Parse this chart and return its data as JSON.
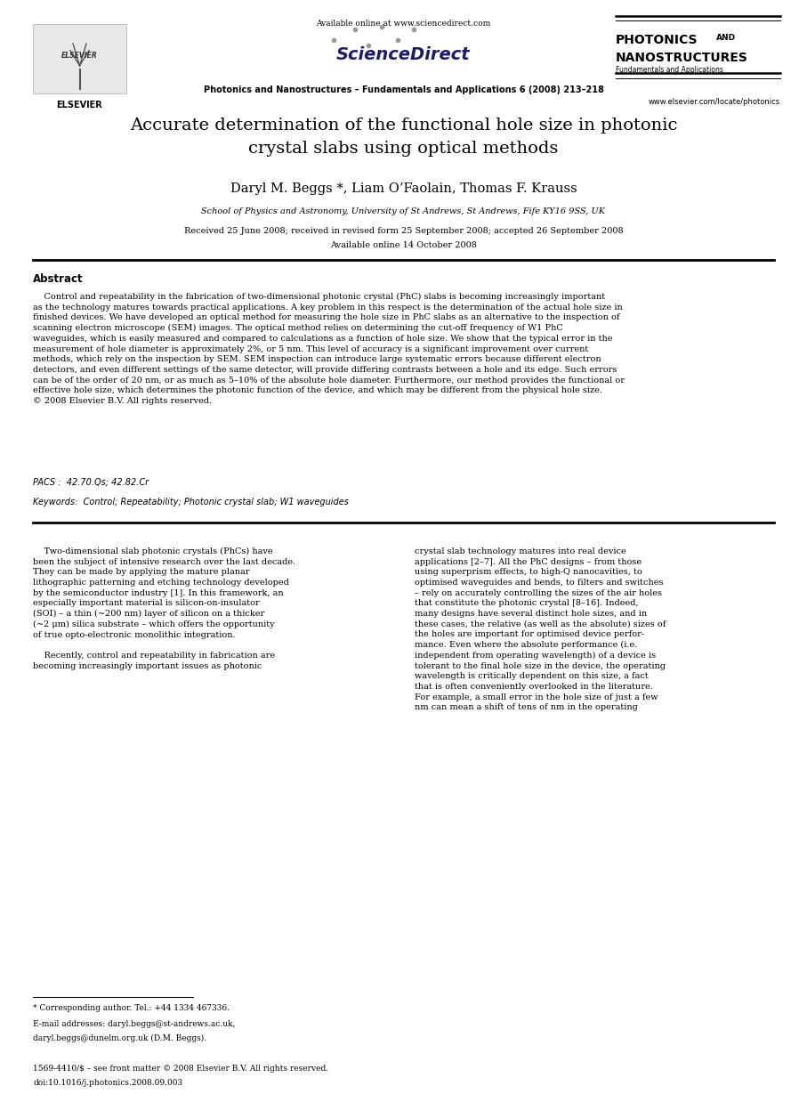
{
  "page_width": 9.07,
  "page_height": 12.38,
  "bg_color": "#ffffff",
  "title": "Accurate determination of the functional hole size in photonic\ncrystal slabs using optical methods",
  "authors": "Daryl M. Beggs *, Liam O’Faolain, Thomas F. Krauss",
  "affiliation": "School of Physics and Astronomy, University of St Andrews, St Andrews, Fife KY16 9SS, UK",
  "dates": "Received 25 June 2008; received in revised form 25 September 2008; accepted 26 September 2008",
  "available": "Available online 14 October 2008",
  "journal_header": "Photonics and Nanostructures – Fundamentals and Applications 6 (2008) 213–218",
  "elsevier_text": "ELSEVIER",
  "available_online": "Available online at www.sciencedirect.com",
  "sciencedirect": "ScienceDirect",
  "journal_sub": "Fundamentals and Applications",
  "journal_url": "www.elsevier.com/locate/photonics",
  "abstract_title": "Abstract",
  "abstract_body": "    Control and repeatability in the fabrication of two-dimensional photonic crystal (PhC) slabs is becoming increasingly important\nas the technology matures towards practical applications. A key problem in this respect is the determination of the actual hole size in\nfinished devices. We have developed an optical method for measuring the hole size in PhC slabs as an alternative to the inspection of\nscanning electron microscope (SEM) images. The optical method relies on determining the cut-off frequency of W1 PhC\nwaveguides, which is easily measured and compared to calculations as a function of hole size. We show that the typical error in the\nmeasurement of hole diameter is approximately 2%, or 5 nm. This level of accuracy is a significant improvement over current\nmethods, which rely on the inspection by SEM. SEM inspection can introduce large systematic errors because different electron\ndetectors, and even different settings of the same detector, will provide differing contrasts between a hole and its edge. Such errors\ncan be of the order of 20 nm, or as much as 5–10% of the absolute hole diameter. Furthermore, our method provides the functional or\neffective hole size, which determines the photonic function of the device, and which may be different from the physical hole size.\n© 2008 Elsevier B.V. All rights reserved.",
  "pacs": "PACS :  42.70.Qs; 42.82.Cr",
  "keywords": "Keywords:  Control; Repeatability; Photonic crystal slab; W1 waveguides",
  "body_left": "    Two-dimensional slab photonic crystals (PhCs) have\nbeen the subject of intensive research over the last decade.\nThey can be made by applying the mature planar\nlithographic patterning and etching technology developed\nby the semiconductor industry [1]. In this framework, an\nespecially important material is silicon-on-insulator\n(SOI) – a thin (~200 nm) layer of silicon on a thicker\n(~2 μm) silica substrate – which offers the opportunity\nof true opto-electronic monolithic integration.\n\n    Recently, control and repeatability in fabrication are\nbecoming increasingly important issues as photonic",
  "body_right": "crystal slab technology matures into real device\napplications [2–7]. All the PhC designs – from those\nusing superprism effects, to high-Q nanocavities, to\noptimised waveguides and bends, to filters and switches\n– rely on accurately controlling the sizes of the air holes\nthat constitute the photonic crystal [8–16]. Indeed,\nmany designs have several distinct hole sizes, and in\nthese cases, the relative (as well as the absolute) sizes of\nthe holes are important for optimised device perfor-\nmance. Even where the absolute performance (i.e.\nindependent from operating wavelength) of a device is\ntolerant to the final hole size in the device, the operating\nwavelength is critically dependent on this size, a fact\nthat is often conveniently overlooked in the literature.\nFor example, a small error in the hole size of just a few\nnm can mean a shift of tens of nm in the operating",
  "footnote_star": "* Corresponding author. Tel.: +44 1334 467336.",
  "footnote_email1": "E-mail addresses: daryl.beggs@st-andrews.ac.uk,",
  "footnote_email2": "daryl.beggs@dunelm.org.uk (D.M. Beggs).",
  "copyright_footer": "1569-4410/$ – see front matter © 2008 Elsevier B.V. All rights reserved.",
  "doi_footer": "doi:10.1016/j.photonics.2008.09.003"
}
